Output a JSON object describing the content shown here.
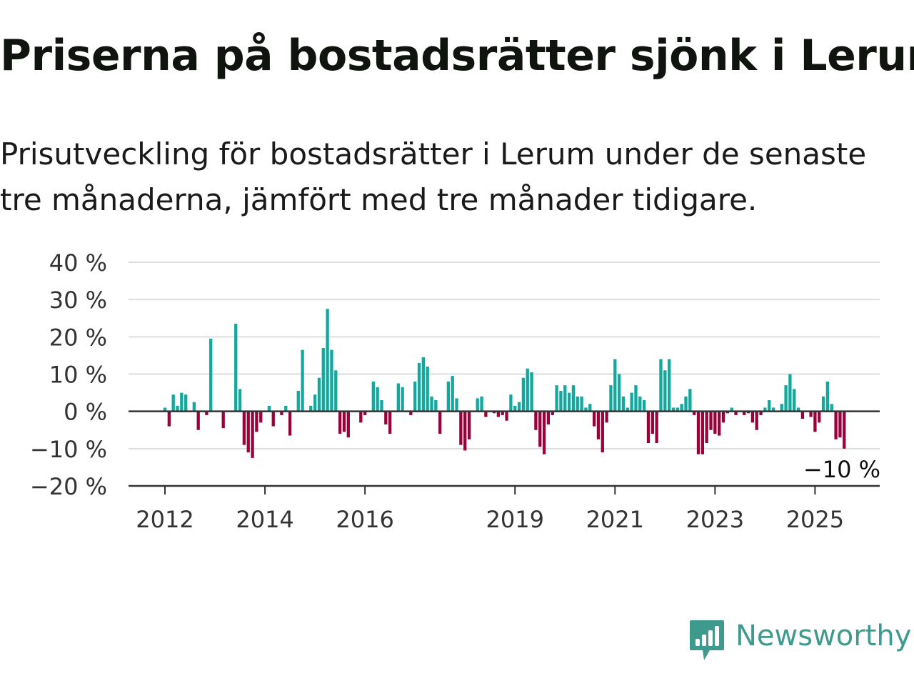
{
  "title": "Priserna på bostadsrätter sjönk i Lerum",
  "subtitle": "Prisutveckling för bostadsrätter i Lerum under de senaste tre månaderna, jämfört med tre månader tidigare.",
  "brand": {
    "name": "Newsworthy",
    "color": "#3f9a8e",
    "icon": "bar-chart-speech-bubble-icon"
  },
  "colors": {
    "positive": "#13a89e",
    "negative": "#9a0039",
    "grid": "#dddddd",
    "axis": "#333333"
  },
  "chart_data": {
    "type": "bar",
    "title": "",
    "xlabel": "",
    "ylabel": "",
    "ylim": [
      -20,
      40
    ],
    "y_ticks": [
      -20,
      -10,
      0,
      10,
      20,
      30,
      40
    ],
    "y_tick_labels": [
      "−20 %",
      "−10 %",
      "0 %",
      "10 %",
      "20 %",
      "30 %",
      "40 %"
    ],
    "x_ticks": [
      "2012",
      "2014",
      "2016",
      "2019",
      "2021",
      "2023",
      "2025"
    ],
    "x_start": "2012-01",
    "x_end": "2025-07",
    "grid": true,
    "last_value_label": "−10 %",
    "series": [
      {
        "values": [
          1,
          -4,
          4.5,
          1.5,
          5,
          4.5,
          null,
          2.5,
          -5,
          null,
          -1,
          19.5,
          null,
          null,
          -4.5,
          null,
          null,
          23.5,
          6,
          -9,
          -11,
          -12.5,
          -5.5,
          -3,
          null,
          1.5,
          -4,
          null,
          -1,
          1.5,
          -6.5,
          null,
          5.5,
          16.5,
          null,
          1.5,
          4.5,
          9,
          17,
          27.5,
          16.5,
          11,
          -6,
          -5.5,
          -7,
          null,
          null,
          -3,
          -1,
          null,
          8,
          6.5,
          3,
          -3.5,
          -6,
          null,
          7.5,
          6.5,
          null,
          -1,
          8,
          13,
          14.5,
          12,
          4,
          3,
          -6,
          null,
          8,
          9.5,
          3.5,
          -9,
          -10.5,
          -7.5,
          null,
          3.5,
          4,
          -1.5,
          null,
          -0.5,
          -1.5,
          -1,
          -2.5,
          4.5,
          1.5,
          2.5,
          9,
          11.5,
          10.5,
          -5,
          -9.5,
          -11.5,
          -3.5,
          -1,
          7,
          5.5,
          7,
          5,
          7,
          4,
          4,
          1,
          2,
          -4,
          -7.5,
          -11,
          -3,
          7,
          14,
          10,
          4,
          1,
          5,
          7,
          4,
          3,
          -8.5,
          -6,
          -8.5,
          14,
          11,
          14,
          1,
          1,
          2,
          4,
          6,
          -1,
          -11.5,
          -11.5,
          -8.5,
          -5,
          -6,
          -6.5,
          -3,
          -0.5,
          1,
          -1,
          null,
          -1,
          -0.5,
          -3,
          -5,
          -1,
          1,
          3,
          1,
          null,
          2,
          7,
          10,
          6,
          1,
          -2,
          null,
          -1.5,
          -5.5,
          -3,
          4,
          8,
          2,
          -7.5,
          -7,
          -10
        ]
      }
    ]
  }
}
